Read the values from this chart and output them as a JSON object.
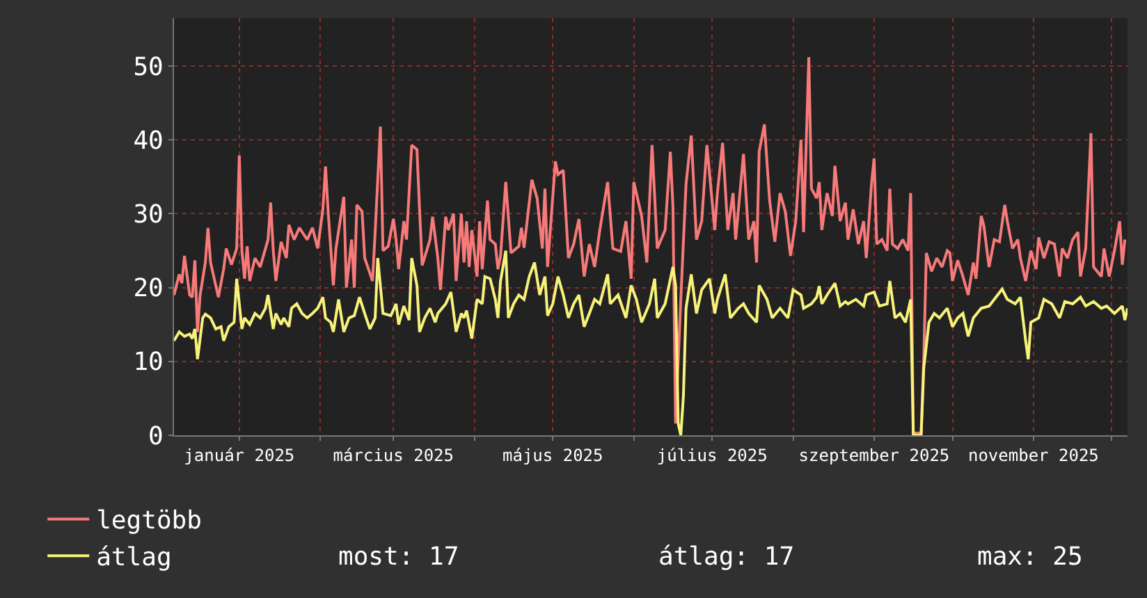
{
  "chart_data": {
    "type": "line",
    "xlim": [
      "2024-12-07",
      "2025-12-07"
    ],
    "xticks": [
      {
        "value": "2025-01-01",
        "label": "január 2025"
      },
      {
        "value": "2025-02-01",
        "label": null
      },
      {
        "value": "2025-03-01",
        "label": "március 2025"
      },
      {
        "value": "2025-04-01",
        "label": null
      },
      {
        "value": "2025-05-01",
        "label": "május 2025"
      },
      {
        "value": "2025-06-01",
        "label": null
      },
      {
        "value": "2025-07-01",
        "label": "július 2025"
      },
      {
        "value": "2025-08-01",
        "label": null
      },
      {
        "value": "2025-09-01",
        "label": "szeptember 2025"
      },
      {
        "value": "2025-10-01",
        "label": null
      },
      {
        "value": "2025-11-01",
        "label": "november 2025"
      },
      {
        "value": "2025-12-01",
        "label": null
      }
    ],
    "ylim": [
      0,
      56.5
    ],
    "yticks": [
      0,
      10,
      20,
      30,
      40,
      50
    ],
    "grid": true,
    "legend": "bottom",
    "annotations": [
      "most: 17",
      "átlag: 17",
      "max: 25"
    ],
    "series": [
      {
        "name": "legtöbb",
        "color": "#f77a7a",
        "x": [
          "2024-12-07",
          "2024-12-09",
          "2024-12-10",
          "2024-12-11",
          "2024-12-13",
          "2024-12-14",
          "2024-12-15",
          "2024-12-16",
          "2024-12-17",
          "2024-12-19",
          "2024-12-20",
          "2024-12-21",
          "2024-12-24",
          "2024-12-26",
          "2024-12-27",
          "2024-12-29",
          "2024-12-31",
          "2025-01-01",
          "2025-01-02",
          "2025-01-03",
          "2025-01-04",
          "2025-01-05",
          "2025-01-07",
          "2025-01-09",
          "2025-01-12",
          "2025-01-13",
          "2025-01-14",
          "2025-01-15",
          "2025-01-17",
          "2025-01-19",
          "2025-01-20",
          "2025-01-22",
          "2025-01-24",
          "2025-01-27",
          "2025-01-29",
          "2025-01-31",
          "2025-02-02",
          "2025-02-03",
          "2025-02-04",
          "2025-02-06",
          "2025-02-07",
          "2025-02-10",
          "2025-02-11",
          "2025-02-13",
          "2025-02-14",
          "2025-02-15",
          "2025-02-17",
          "2025-02-18",
          "2025-02-21",
          "2025-02-22",
          "2025-02-24",
          "2025-02-25",
          "2025-02-27",
          "2025-03-01",
          "2025-03-02",
          "2025-03-03",
          "2025-03-05",
          "2025-03-06",
          "2025-03-08",
          "2025-03-10",
          "2025-03-11",
          "2025-03-12",
          "2025-03-15",
          "2025-03-16",
          "2025-03-18",
          "2025-03-19",
          "2025-03-21",
          "2025-03-22",
          "2025-03-24",
          "2025-03-25",
          "2025-03-27",
          "2025-03-28",
          "2025-03-29",
          "2025-03-30",
          "2025-03-31",
          "2025-04-02",
          "2025-04-03",
          "2025-04-04",
          "2025-04-06",
          "2025-04-07",
          "2025-04-09",
          "2025-04-10",
          "2025-04-11",
          "2025-04-13",
          "2025-04-15",
          "2025-04-18",
          "2025-04-19",
          "2025-04-20",
          "2025-04-23",
          "2025-04-25",
          "2025-04-27",
          "2025-04-28",
          "2025-04-29",
          "2025-05-02",
          "2025-05-03",
          "2025-05-05",
          "2025-05-07",
          "2025-05-09",
          "2025-05-11",
          "2025-05-13",
          "2025-05-15",
          "2025-05-17",
          "2025-05-19",
          "2025-05-22",
          "2025-05-24",
          "2025-05-27",
          "2025-05-29",
          "2025-05-31",
          "2025-06-01",
          "2025-06-04",
          "2025-06-06",
          "2025-06-08",
          "2025-06-10",
          "2025-06-13",
          "2025-06-15",
          "2025-06-16",
          "2025-06-17",
          "2025-06-19",
          "2025-06-21",
          "2025-06-23",
          "2025-06-25",
          "2025-06-27",
          "2025-06-29",
          "2025-07-02",
          "2025-07-03",
          "2025-07-05",
          "2025-07-07",
          "2025-07-09",
          "2025-07-10",
          "2025-07-13",
          "2025-07-15",
          "2025-07-17",
          "2025-07-18",
          "2025-07-19",
          "2025-07-21",
          "2025-07-23",
          "2025-07-25",
          "2025-07-27",
          "2025-07-29",
          "2025-07-31",
          "2025-08-02",
          "2025-08-04",
          "2025-08-05",
          "2025-08-07",
          "2025-08-08",
          "2025-08-10",
          "2025-08-11",
          "2025-08-12",
          "2025-08-14",
          "2025-08-16",
          "2025-08-17",
          "2025-08-19",
          "2025-08-21",
          "2025-08-22",
          "2025-08-24",
          "2025-08-26",
          "2025-08-28",
          "2025-08-29",
          "2025-08-31",
          "2025-09-01",
          "2025-09-02",
          "2025-09-04",
          "2025-09-06",
          "2025-09-07",
          "2025-09-08",
          "2025-09-10",
          "2025-09-12",
          "2025-09-14",
          "2025-09-15",
          "2025-09-16",
          "2025-09-19",
          "2025-09-20",
          "2025-09-21",
          "2025-09-23",
          "2025-09-25",
          "2025-09-27",
          "2025-09-29",
          "2025-09-30",
          "2025-10-01",
          "2025-10-03",
          "2025-10-05",
          "2025-10-07",
          "2025-10-09",
          "2025-10-10",
          "2025-10-12",
          "2025-10-13",
          "2025-10-15",
          "2025-10-17",
          "2025-10-19",
          "2025-10-21",
          "2025-10-22",
          "2025-10-24",
          "2025-10-26",
          "2025-10-27",
          "2025-10-29",
          "2025-10-31",
          "2025-11-02",
          "2025-11-03",
          "2025-11-05",
          "2025-11-07",
          "2025-11-09",
          "2025-11-11",
          "2025-11-12",
          "2025-11-14",
          "2025-11-16",
          "2025-11-18",
          "2025-11-19",
          "2025-11-21",
          "2025-11-23",
          "2025-11-24",
          "2025-11-27",
          "2025-11-28",
          "2025-11-30",
          "2025-12-02",
          "2025-12-04",
          "2025-12-05",
          "2025-12-06"
        ],
        "values": [
          19.0,
          21.8,
          20.6,
          24.3,
          19.0,
          18.7,
          23.7,
          14.0,
          19.0,
          23.4,
          28.1,
          23.4,
          18.7,
          22.5,
          25.3,
          23.1,
          25.3,
          37.9,
          25.0,
          21.2,
          25.6,
          20.9,
          24.0,
          22.8,
          26.5,
          31.5,
          25.0,
          20.9,
          26.2,
          24.0,
          28.5,
          26.5,
          28.1,
          26.5,
          28.1,
          25.3,
          30.6,
          36.4,
          30.3,
          20.3,
          25.3,
          32.3,
          20.0,
          26.5,
          20.0,
          31.2,
          30.3,
          24.0,
          20.9,
          27.5,
          41.8,
          25.0,
          25.6,
          29.3,
          26.5,
          22.5,
          29.0,
          26.5,
          39.3,
          38.7,
          30.6,
          23.0,
          26.5,
          29.6,
          24.0,
          19.7,
          29.6,
          27.8,
          30.0,
          20.9,
          30.0,
          23.4,
          29.0,
          22.8,
          27.8,
          21.5,
          29.0,
          22.5,
          31.8,
          26.5,
          25.9,
          22.5,
          24.3,
          34.3,
          24.7,
          25.6,
          28.1,
          25.4,
          34.6,
          32.1,
          25.3,
          33.4,
          22.8,
          37.1,
          35.3,
          35.9,
          24.0,
          25.9,
          29.3,
          21.5,
          25.9,
          22.8,
          27.8,
          34.3,
          25.3,
          24.9,
          29.0,
          21.2,
          34.3,
          29.7,
          23.4,
          39.3,
          25.3,
          27.8,
          38.4,
          30.9,
          1.6,
          18.4,
          34.0,
          40.6,
          26.5,
          29.0,
          39.3,
          27.8,
          32.8,
          39.6,
          27.8,
          32.8,
          26.5,
          38.1,
          26.5,
          29.0,
          23.4,
          38.4,
          42.1,
          31.8,
          26.2,
          32.8,
          30.3,
          24.3,
          29.0,
          40.0,
          27.5,
          51.2,
          33.4,
          32.1,
          34.3,
          27.8,
          32.8,
          29.7,
          36.5,
          29.0,
          31.5,
          26.5,
          30.6,
          25.9,
          29.0,
          24.0,
          34.0,
          37.5,
          25.9,
          26.5,
          25.0,
          33.4,
          25.9,
          25.3,
          26.5,
          25.0,
          32.8,
          0.3,
          0.3,
          10.3,
          24.7,
          22.2,
          24.0,
          22.8,
          25.0,
          24.7,
          20.9,
          23.7,
          21.5,
          19.0,
          23.4,
          21.2,
          29.7,
          28.4,
          22.8,
          26.5,
          26.2,
          31.2,
          29.0,
          25.3,
          26.5,
          24.0,
          20.9,
          25.0,
          22.5,
          26.8,
          24.0,
          26.2,
          25.9,
          21.5,
          25.3,
          24.0,
          26.5,
          27.5,
          21.5,
          25.3,
          40.9,
          22.8,
          21.5,
          25.3,
          21.5,
          25.0,
          29.0,
          23.1,
          26.5
        ]
      },
      {
        "name": "átlag",
        "color": "#f7f27a",
        "x": [
          "2024-12-07",
          "2024-12-09",
          "2024-12-11",
          "2024-12-13",
          "2024-12-14",
          "2024-12-15",
          "2024-12-16",
          "2024-12-18",
          "2024-12-19",
          "2024-12-21",
          "2024-12-23",
          "2024-12-25",
          "2024-12-26",
          "2024-12-28",
          "2024-12-30",
          "2024-12-31",
          "2025-01-02",
          "2025-01-03",
          "2025-01-05",
          "2025-01-07",
          "2025-01-09",
          "2025-01-11",
          "2025-01-12",
          "2025-01-14",
          "2025-01-15",
          "2025-01-17",
          "2025-01-18",
          "2025-01-20",
          "2025-01-21",
          "2025-01-23",
          "2025-01-25",
          "2025-01-27",
          "2025-01-29",
          "2025-01-31",
          "2025-02-02",
          "2025-02-03",
          "2025-02-05",
          "2025-02-06",
          "2025-02-08",
          "2025-02-10",
          "2025-02-12",
          "2025-02-14",
          "2025-02-16",
          "2025-02-18",
          "2025-02-20",
          "2025-02-22",
          "2025-02-23",
          "2025-02-25",
          "2025-02-28",
          "2025-03-02",
          "2025-03-03",
          "2025-03-05",
          "2025-03-07",
          "2025-03-08",
          "2025-03-10",
          "2025-03-11",
          "2025-03-13",
          "2025-03-15",
          "2025-03-17",
          "2025-03-18",
          "2025-03-21",
          "2025-03-23",
          "2025-03-25",
          "2025-03-27",
          "2025-03-28",
          "2025-03-29",
          "2025-03-31",
          "2025-04-02",
          "2025-04-04",
          "2025-04-05",
          "2025-04-07",
          "2025-04-09",
          "2025-04-10",
          "2025-04-11",
          "2025-04-13",
          "2025-04-14",
          "2025-04-16",
          "2025-04-18",
          "2025-04-20",
          "2025-04-22",
          "2025-04-24",
          "2025-04-26",
          "2025-04-28",
          "2025-04-29",
          "2025-05-01",
          "2025-05-03",
          "2025-05-05",
          "2025-05-07",
          "2025-05-09",
          "2025-05-11",
          "2025-05-13",
          "2025-05-15",
          "2025-05-17",
          "2025-05-19",
          "2025-05-22",
          "2025-05-23",
          "2025-05-26",
          "2025-05-29",
          "2025-05-31",
          "2025-06-02",
          "2025-06-04",
          "2025-06-07",
          "2025-06-09",
          "2025-06-10",
          "2025-06-13",
          "2025-06-16",
          "2025-06-17",
          "2025-06-18",
          "2025-06-19",
          "2025-06-20",
          "2025-06-21",
          "2025-06-23",
          "2025-06-25",
          "2025-06-27",
          "2025-06-30",
          "2025-07-02",
          "2025-07-03",
          "2025-07-06",
          "2025-07-08",
          "2025-07-11",
          "2025-07-13",
          "2025-07-15",
          "2025-07-18",
          "2025-07-19",
          "2025-07-22",
          "2025-07-24",
          "2025-07-27",
          "2025-07-30",
          "2025-08-01",
          "2025-08-04",
          "2025-08-05",
          "2025-08-08",
          "2025-08-10",
          "2025-08-11",
          "2025-08-12",
          "2025-08-14",
          "2025-08-17",
          "2025-08-19",
          "2025-08-21",
          "2025-08-22",
          "2025-08-25",
          "2025-08-28",
          "2025-08-29",
          "2025-09-01",
          "2025-09-03",
          "2025-09-06",
          "2025-09-07",
          "2025-09-09",
          "2025-09-11",
          "2025-09-13",
          "2025-09-15",
          "2025-09-16",
          "2025-09-19",
          "2025-09-20",
          "2025-09-22",
          "2025-09-24",
          "2025-09-26",
          "2025-09-29",
          "2025-10-01",
          "2025-10-03",
          "2025-10-05",
          "2025-10-07",
          "2025-10-09",
          "2025-10-12",
          "2025-10-15",
          "2025-10-17",
          "2025-10-20",
          "2025-10-22",
          "2025-10-25",
          "2025-10-27",
          "2025-10-29",
          "2025-10-30",
          "2025-10-31",
          "2025-11-03",
          "2025-11-05",
          "2025-11-08",
          "2025-11-11",
          "2025-11-13",
          "2025-11-16",
          "2025-11-19",
          "2025-11-21",
          "2025-11-24",
          "2025-11-27",
          "2025-11-29",
          "2025-12-02",
          "2025-12-05",
          "2025-12-06",
          "2025-12-07"
        ],
        "values": [
          12.8,
          14.0,
          13.4,
          13.7,
          13.1,
          14.4,
          10.3,
          15.9,
          16.4,
          15.9,
          14.4,
          14.7,
          12.8,
          14.7,
          15.3,
          21.2,
          14.4,
          15.9,
          15.0,
          16.5,
          15.9,
          17.2,
          19.0,
          14.4,
          16.5,
          15.0,
          15.9,
          14.7,
          17.2,
          17.8,
          16.5,
          15.9,
          16.5,
          17.2,
          18.7,
          15.9,
          15.3,
          14.0,
          18.4,
          14.0,
          15.9,
          16.2,
          18.7,
          16.5,
          14.4,
          15.9,
          24.0,
          16.5,
          16.2,
          17.8,
          15.0,
          17.5,
          15.6,
          24.0,
          20.3,
          14.0,
          15.9,
          17.2,
          15.3,
          16.5,
          17.8,
          19.4,
          14.0,
          16.5,
          15.9,
          16.9,
          13.1,
          18.4,
          17.8,
          21.5,
          21.2,
          18.4,
          15.9,
          20.9,
          25.0,
          15.9,
          17.8,
          19.0,
          18.4,
          21.5,
          23.4,
          19.0,
          21.5,
          16.2,
          17.8,
          21.5,
          19.0,
          15.9,
          17.8,
          19.0,
          14.7,
          16.5,
          18.4,
          17.8,
          21.8,
          17.8,
          19.0,
          15.9,
          20.3,
          18.4,
          15.3,
          17.8,
          21.2,
          15.9,
          17.8,
          22.8,
          20.3,
          1.6,
          0,
          5.3,
          17.2,
          21.8,
          16.5,
          19.7,
          21.2,
          16.5,
          18.4,
          21.8,
          15.9,
          17.2,
          17.8,
          16.5,
          15.3,
          20.3,
          18.4,
          15.9,
          17.2,
          15.9,
          19.7,
          19.0,
          17.2,
          17.8,
          18.7,
          20.2,
          17.8,
          19.0,
          20.6,
          17.5,
          18.1,
          17.8,
          18.4,
          17.5,
          19.0,
          19.4,
          17.5,
          17.8,
          20.9,
          15.9,
          16.5,
          15.3,
          18.4,
          0,
          0,
          9.1,
          15.3,
          16.5,
          15.9,
          17.2,
          14.7,
          15.9,
          16.5,
          13.4,
          15.9,
          17.2,
          17.5,
          18.4,
          19.8,
          18.4,
          17.8,
          18.7,
          12.8,
          10.3,
          15.3,
          15.9,
          18.4,
          17.8,
          15.9,
          18.1,
          17.8,
          18.7,
          17.5,
          18.1,
          17.2,
          17.5,
          16.5,
          17.5,
          15.6,
          17.2
        ]
      }
    ]
  }
}
